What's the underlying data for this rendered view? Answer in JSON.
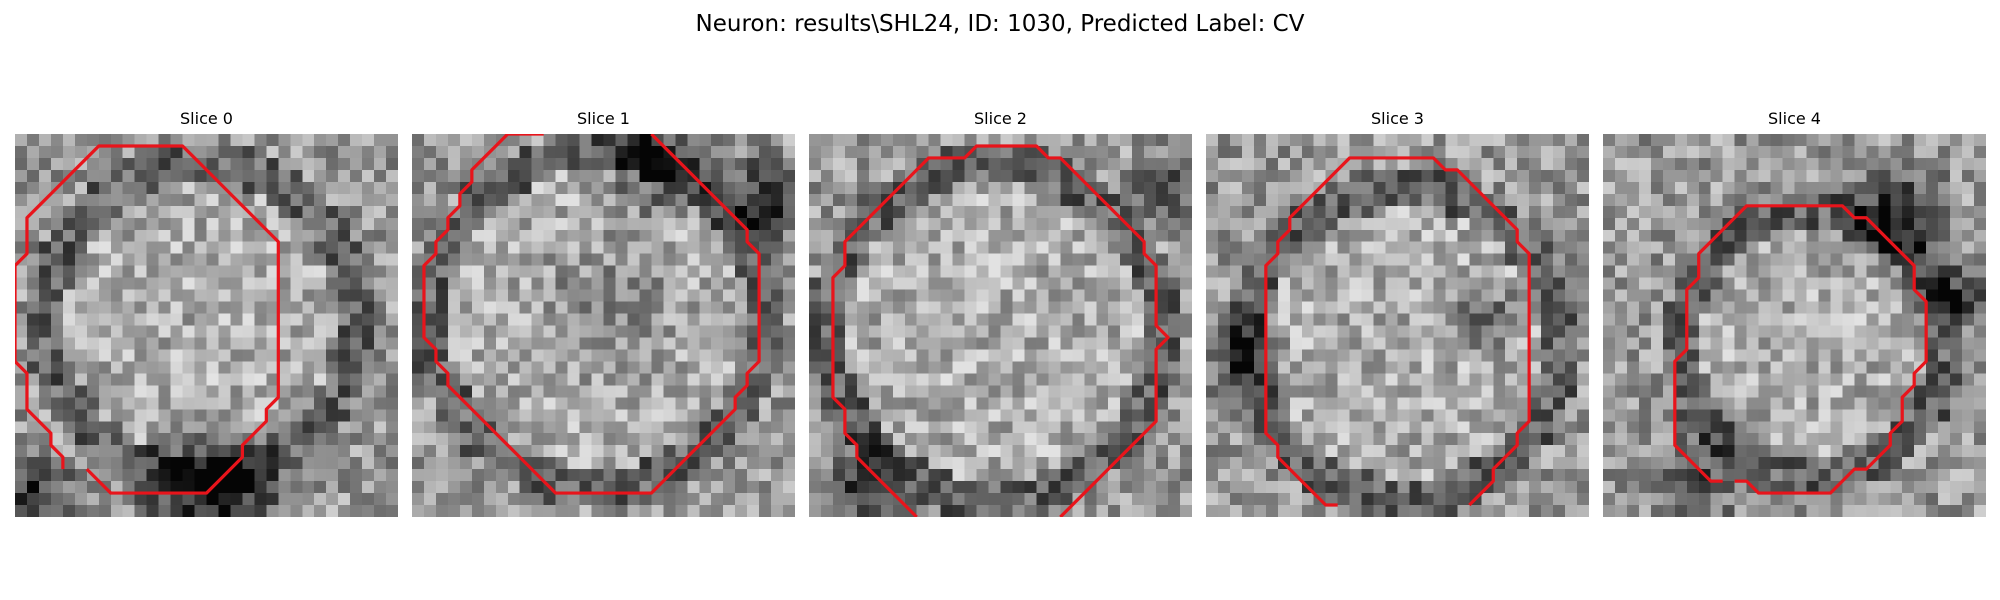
{
  "figure": {
    "title": "Neuron: results\\SHL24, ID: 1030, Predicted Label: CV",
    "contour_color": "#e8141b"
  },
  "slices": [
    {
      "title": "Slice 0",
      "image": "grayscale-em-patch",
      "overlay": "red-contour-outline"
    },
    {
      "title": "Slice 1",
      "image": "grayscale-em-patch",
      "overlay": "red-contour-outline"
    },
    {
      "title": "Slice 2",
      "image": "grayscale-em-patch",
      "overlay": "red-contour-outline"
    },
    {
      "title": "Slice 3",
      "image": "grayscale-em-patch",
      "overlay": "red-contour-outline"
    },
    {
      "title": "Slice 4",
      "image": "grayscale-em-patch",
      "overlay": "red-contour-outline"
    }
  ]
}
